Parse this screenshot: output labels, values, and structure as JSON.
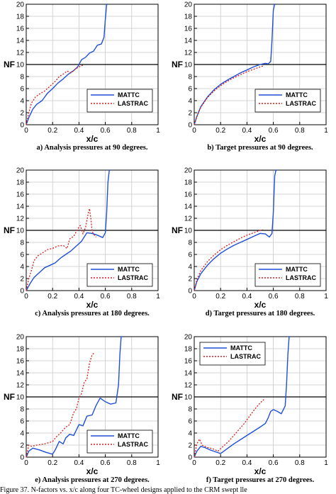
{
  "page": {
    "figure_caption_fragment": "Figure 37. N-factors vs. x/c along four TC-wheel designs applied to the CRM swept lle"
  },
  "colors": {
    "mattc": "#1f4fd8",
    "lastrac": "#d81c1c",
    "grid": "#c8c8c8",
    "axis": "#000000",
    "threshold": "#000000"
  },
  "chart_data": [
    {
      "type": "line",
      "caption": "a) Analysis pressures at 90 degrees.",
      "xlabel": "x/c",
      "ylabel": "NF",
      "xlim": [
        0,
        1
      ],
      "ylim": [
        0,
        20
      ],
      "xticks": [
        "0",
        "0.2",
        "0.4",
        "0.6",
        "0.8",
        "1"
      ],
      "yticks": [
        "0",
        "2",
        "4",
        "6",
        "8",
        "10",
        "12",
        "14",
        "16",
        "18",
        "20"
      ],
      "show_ylabel": true,
      "grid": true,
      "threshold": 10,
      "legend": {
        "position": "right-middle",
        "entries": [
          "MATTC",
          "LASTRAC"
        ]
      },
      "series": [
        {
          "name": "MATTC",
          "style": "solid",
          "x": [
            0,
            0.02,
            0.05,
            0.08,
            0.12,
            0.16,
            0.2,
            0.24,
            0.28,
            0.32,
            0.36,
            0.39,
            0.42,
            0.45,
            0.48,
            0.51,
            0.54,
            0.57,
            0.59,
            0.6,
            0.61,
            0.62
          ],
          "y": [
            0,
            1.2,
            2.6,
            3.4,
            4.0,
            5.2,
            6.0,
            6.9,
            7.6,
            8.4,
            9.0,
            9.6,
            10.8,
            11.2,
            11.9,
            12.2,
            13.2,
            13.4,
            14.5,
            17.5,
            20,
            20
          ]
        },
        {
          "name": "LASTRAC",
          "style": "dotted",
          "x": [
            0,
            0.02,
            0.04,
            0.07,
            0.1,
            0.14,
            0.18,
            0.22,
            0.25,
            0.28,
            0.31,
            0.34,
            0.37,
            0.4,
            0.43
          ],
          "y": [
            0,
            2.0,
            3.6,
            4.6,
            5.1,
            5.6,
            6.4,
            7.2,
            8.0,
            8.4,
            8.9,
            8.6,
            9.2,
            9.6,
            9.9
          ]
        }
      ]
    },
    {
      "type": "line",
      "caption": "b) Target pressures at 90 degrees.",
      "xlabel": "x/c",
      "ylabel": "NF",
      "xlim": [
        0,
        1
      ],
      "ylim": [
        0,
        20
      ],
      "xticks": [
        "0",
        "0.2",
        "0.4",
        "0.6",
        "0.8",
        "1"
      ],
      "yticks": [
        "0",
        "2",
        "4",
        "6",
        "8",
        "10",
        "12",
        "14",
        "16",
        "18",
        "20"
      ],
      "show_ylabel": true,
      "grid": true,
      "threshold": 10,
      "legend": {
        "position": "right-middle",
        "entries": [
          "MATTC",
          "LASTRAC"
        ]
      },
      "series": [
        {
          "name": "MATTC",
          "style": "solid",
          "x": [
            0,
            0.02,
            0.05,
            0.1,
            0.15,
            0.2,
            0.25,
            0.3,
            0.35,
            0.4,
            0.45,
            0.5,
            0.54,
            0.56,
            0.58,
            0.59,
            0.6,
            0.61,
            0.62
          ],
          "y": [
            0,
            1.4,
            3.0,
            4.6,
            5.8,
            6.7,
            7.4,
            8.0,
            8.6,
            9.1,
            9.6,
            10.0,
            10.2,
            10.1,
            10.5,
            14.0,
            19.0,
            20,
            20
          ]
        },
        {
          "name": "LASTRAC",
          "style": "dotted",
          "x": [
            0,
            0.02,
            0.05,
            0.1,
            0.15,
            0.2,
            0.25,
            0.3,
            0.35,
            0.4,
            0.45,
            0.5,
            0.53
          ],
          "y": [
            0,
            1.3,
            2.9,
            4.5,
            5.6,
            6.5,
            7.2,
            7.8,
            8.3,
            8.8,
            9.2,
            9.6,
            9.8
          ]
        }
      ]
    },
    {
      "type": "line",
      "caption": "c) Analysis pressures at 180 degrees.",
      "xlabel": "x/c",
      "ylabel": "NF",
      "xlim": [
        0,
        1
      ],
      "ylim": [
        0,
        20
      ],
      "xticks": [
        "0",
        "0.2",
        "0.4",
        "0.6",
        "0.8",
        "1"
      ],
      "yticks": [
        "0",
        "2",
        "4",
        "6",
        "8",
        "10",
        "12",
        "14",
        "16",
        "18",
        "20"
      ],
      "show_ylabel": true,
      "grid": true,
      "threshold": 10,
      "legend": {
        "position": "right-bottom",
        "entries": [
          "MATTC",
          "LASTRAC"
        ]
      },
      "series": [
        {
          "name": "MATTC",
          "style": "solid",
          "x": [
            0,
            0.03,
            0.06,
            0.1,
            0.14,
            0.18,
            0.22,
            0.26,
            0.3,
            0.34,
            0.38,
            0.42,
            0.46,
            0.5,
            0.54,
            0.58,
            0.6,
            0.61,
            0.62,
            0.63,
            0.64
          ],
          "y": [
            0,
            1.2,
            2.2,
            3.0,
            3.8,
            4.2,
            4.6,
            5.4,
            6.0,
            6.6,
            7.4,
            8.2,
            9.6,
            9.5,
            9.2,
            8.8,
            9.6,
            13.0,
            18.0,
            20,
            20
          ]
        },
        {
          "name": "LASTRAC",
          "style": "dotted",
          "x": [
            0,
            0.02,
            0.04,
            0.06,
            0.09,
            0.12,
            0.16,
            0.2,
            0.24,
            0.28,
            0.31,
            0.33,
            0.36,
            0.39,
            0.41,
            0.43,
            0.45,
            0.47,
            0.48,
            0.49,
            0.5,
            0.51,
            0.53
          ],
          "y": [
            0,
            2.0,
            3.4,
            5.0,
            5.8,
            6.2,
            6.8,
            7.0,
            7.4,
            7.5,
            7.0,
            8.6,
            9.0,
            10.2,
            10.8,
            9.4,
            10.5,
            12.8,
            13.6,
            12.0,
            9.8,
            9.4,
            8.9
          ]
        }
      ]
    },
    {
      "type": "line",
      "caption": "d) Target pressures at 180 degrees.",
      "xlabel": "x/c",
      "ylabel": "NF",
      "xlim": [
        0,
        1
      ],
      "ylim": [
        0,
        20
      ],
      "xticks": [
        "0",
        "0.2",
        "0.4",
        "0.6",
        "0.8",
        "1"
      ],
      "yticks": [
        "0",
        "2",
        "4",
        "6",
        "8",
        "10",
        "12",
        "14",
        "16",
        "18",
        "20"
      ],
      "show_ylabel": true,
      "grid": true,
      "threshold": 10,
      "legend": {
        "position": "right-bottom",
        "entries": [
          "MATTC",
          "LASTRAC"
        ]
      },
      "series": [
        {
          "name": "MATTC",
          "style": "solid",
          "x": [
            0,
            0.02,
            0.05,
            0.1,
            0.15,
            0.2,
            0.25,
            0.3,
            0.35,
            0.4,
            0.45,
            0.5,
            0.54,
            0.57,
            0.59,
            0.6,
            0.61,
            0.62,
            0.63
          ],
          "y": [
            0,
            1.5,
            2.8,
            4.2,
            5.3,
            6.2,
            6.9,
            7.5,
            8.0,
            8.5,
            9.0,
            9.5,
            9.4,
            8.9,
            9.5,
            13.0,
            19.0,
            20,
            20
          ]
        },
        {
          "name": "LASTRAC",
          "style": "dotted",
          "x": [
            0,
            0.02,
            0.05,
            0.1,
            0.15,
            0.2,
            0.25,
            0.3,
            0.35,
            0.4,
            0.45,
            0.5,
            0.52
          ],
          "y": [
            0,
            1.8,
            3.3,
            4.8,
            5.9,
            6.8,
            7.5,
            8.1,
            8.7,
            9.2,
            9.6,
            10.0,
            10.1
          ]
        }
      ]
    },
    {
      "type": "line",
      "caption": "e) Analysis pressures at 270 degrees.",
      "xlabel": "x/c",
      "ylabel": "NF",
      "xlim": [
        0,
        1
      ],
      "ylim": [
        0,
        20
      ],
      "xticks": [
        "0",
        "0.2",
        "0.4",
        "0.6",
        "0.8",
        "1"
      ],
      "yticks": [
        "0",
        "2",
        "4",
        "6",
        "8",
        "10",
        "12",
        "14",
        "16",
        "18",
        "20"
      ],
      "show_ylabel": true,
      "grid": true,
      "threshold": 10,
      "legend": {
        "position": "right-bottom",
        "entries": [
          "MATTC",
          "LASTRAC"
        ]
      },
      "series": [
        {
          "name": "MATTC",
          "style": "solid",
          "x": [
            0,
            0.02,
            0.05,
            0.1,
            0.15,
            0.2,
            0.22,
            0.25,
            0.28,
            0.3,
            0.33,
            0.36,
            0.4,
            0.43,
            0.46,
            0.5,
            0.53,
            0.56,
            0.6,
            0.64,
            0.68,
            0.7,
            0.71,
            0.72,
            0.73
          ],
          "y": [
            0,
            1.0,
            1.5,
            1.2,
            0.8,
            0.5,
            1.2,
            2.6,
            2.2,
            3.2,
            3.8,
            3.6,
            5.4,
            5.2,
            6.8,
            7.0,
            8.6,
            9.8,
            9.2,
            8.8,
            9.0,
            12.0,
            17.0,
            20,
            20
          ]
        },
        {
          "name": "LASTRAC",
          "style": "dotted",
          "x": [
            0,
            0.02,
            0.04,
            0.08,
            0.14,
            0.2,
            0.23,
            0.26,
            0.3,
            0.33,
            0.36,
            0.38,
            0.4,
            0.42,
            0.44,
            0.46,
            0.48,
            0.5,
            0.52
          ],
          "y": [
            0,
            2.0,
            1.8,
            2.0,
            2.2,
            2.6,
            3.4,
            4.0,
            5.0,
            5.4,
            7.4,
            8.0,
            9.8,
            10.6,
            12.4,
            13.0,
            15.6,
            17.0,
            17.4
          ]
        }
      ]
    },
    {
      "type": "line",
      "caption": "f) Target pressures at 270 degrees.",
      "xlabel": "x/c",
      "ylabel": "NF",
      "xlim": [
        0,
        1
      ],
      "ylim": [
        0,
        20
      ],
      "xticks": [
        "0",
        "0.2",
        "0.4",
        "0.6",
        "0.8",
        "1"
      ],
      "yticks": [
        "0",
        "2",
        "4",
        "6",
        "8",
        "10",
        "12",
        "14",
        "16",
        "18",
        "20"
      ],
      "show_ylabel": true,
      "grid": true,
      "threshold": 10,
      "legend": {
        "position": "top-left",
        "entries": [
          "MATTC",
          "LASTRAC"
        ]
      },
      "series": [
        {
          "name": "MATTC",
          "style": "solid",
          "x": [
            0,
            0.02,
            0.05,
            0.08,
            0.12,
            0.16,
            0.2,
            0.25,
            0.3,
            0.35,
            0.4,
            0.45,
            0.5,
            0.54,
            0.56,
            0.58,
            0.6,
            0.63,
            0.66,
            0.69,
            0.7,
            0.71,
            0.72,
            0.73
          ],
          "y": [
            0,
            1.0,
            1.8,
            1.6,
            1.2,
            0.9,
            0.6,
            1.4,
            2.2,
            2.9,
            3.6,
            4.3,
            5.0,
            5.6,
            6.5,
            7.6,
            7.9,
            7.6,
            7.2,
            8.5,
            12.0,
            17.0,
            20,
            20
          ]
        },
        {
          "name": "LASTRAC",
          "style": "dotted",
          "x": [
            0,
            0.02,
            0.04,
            0.06,
            0.1,
            0.14,
            0.18,
            0.22,
            0.26,
            0.3,
            0.34,
            0.38,
            0.42,
            0.46,
            0.5,
            0.53
          ],
          "y": [
            0,
            2.2,
            3.0,
            2.0,
            1.6,
            1.4,
            1.0,
            1.8,
            2.6,
            3.6,
            4.6,
            5.6,
            6.8,
            8.0,
            9.0,
            9.6
          ]
        }
      ]
    }
  ]
}
